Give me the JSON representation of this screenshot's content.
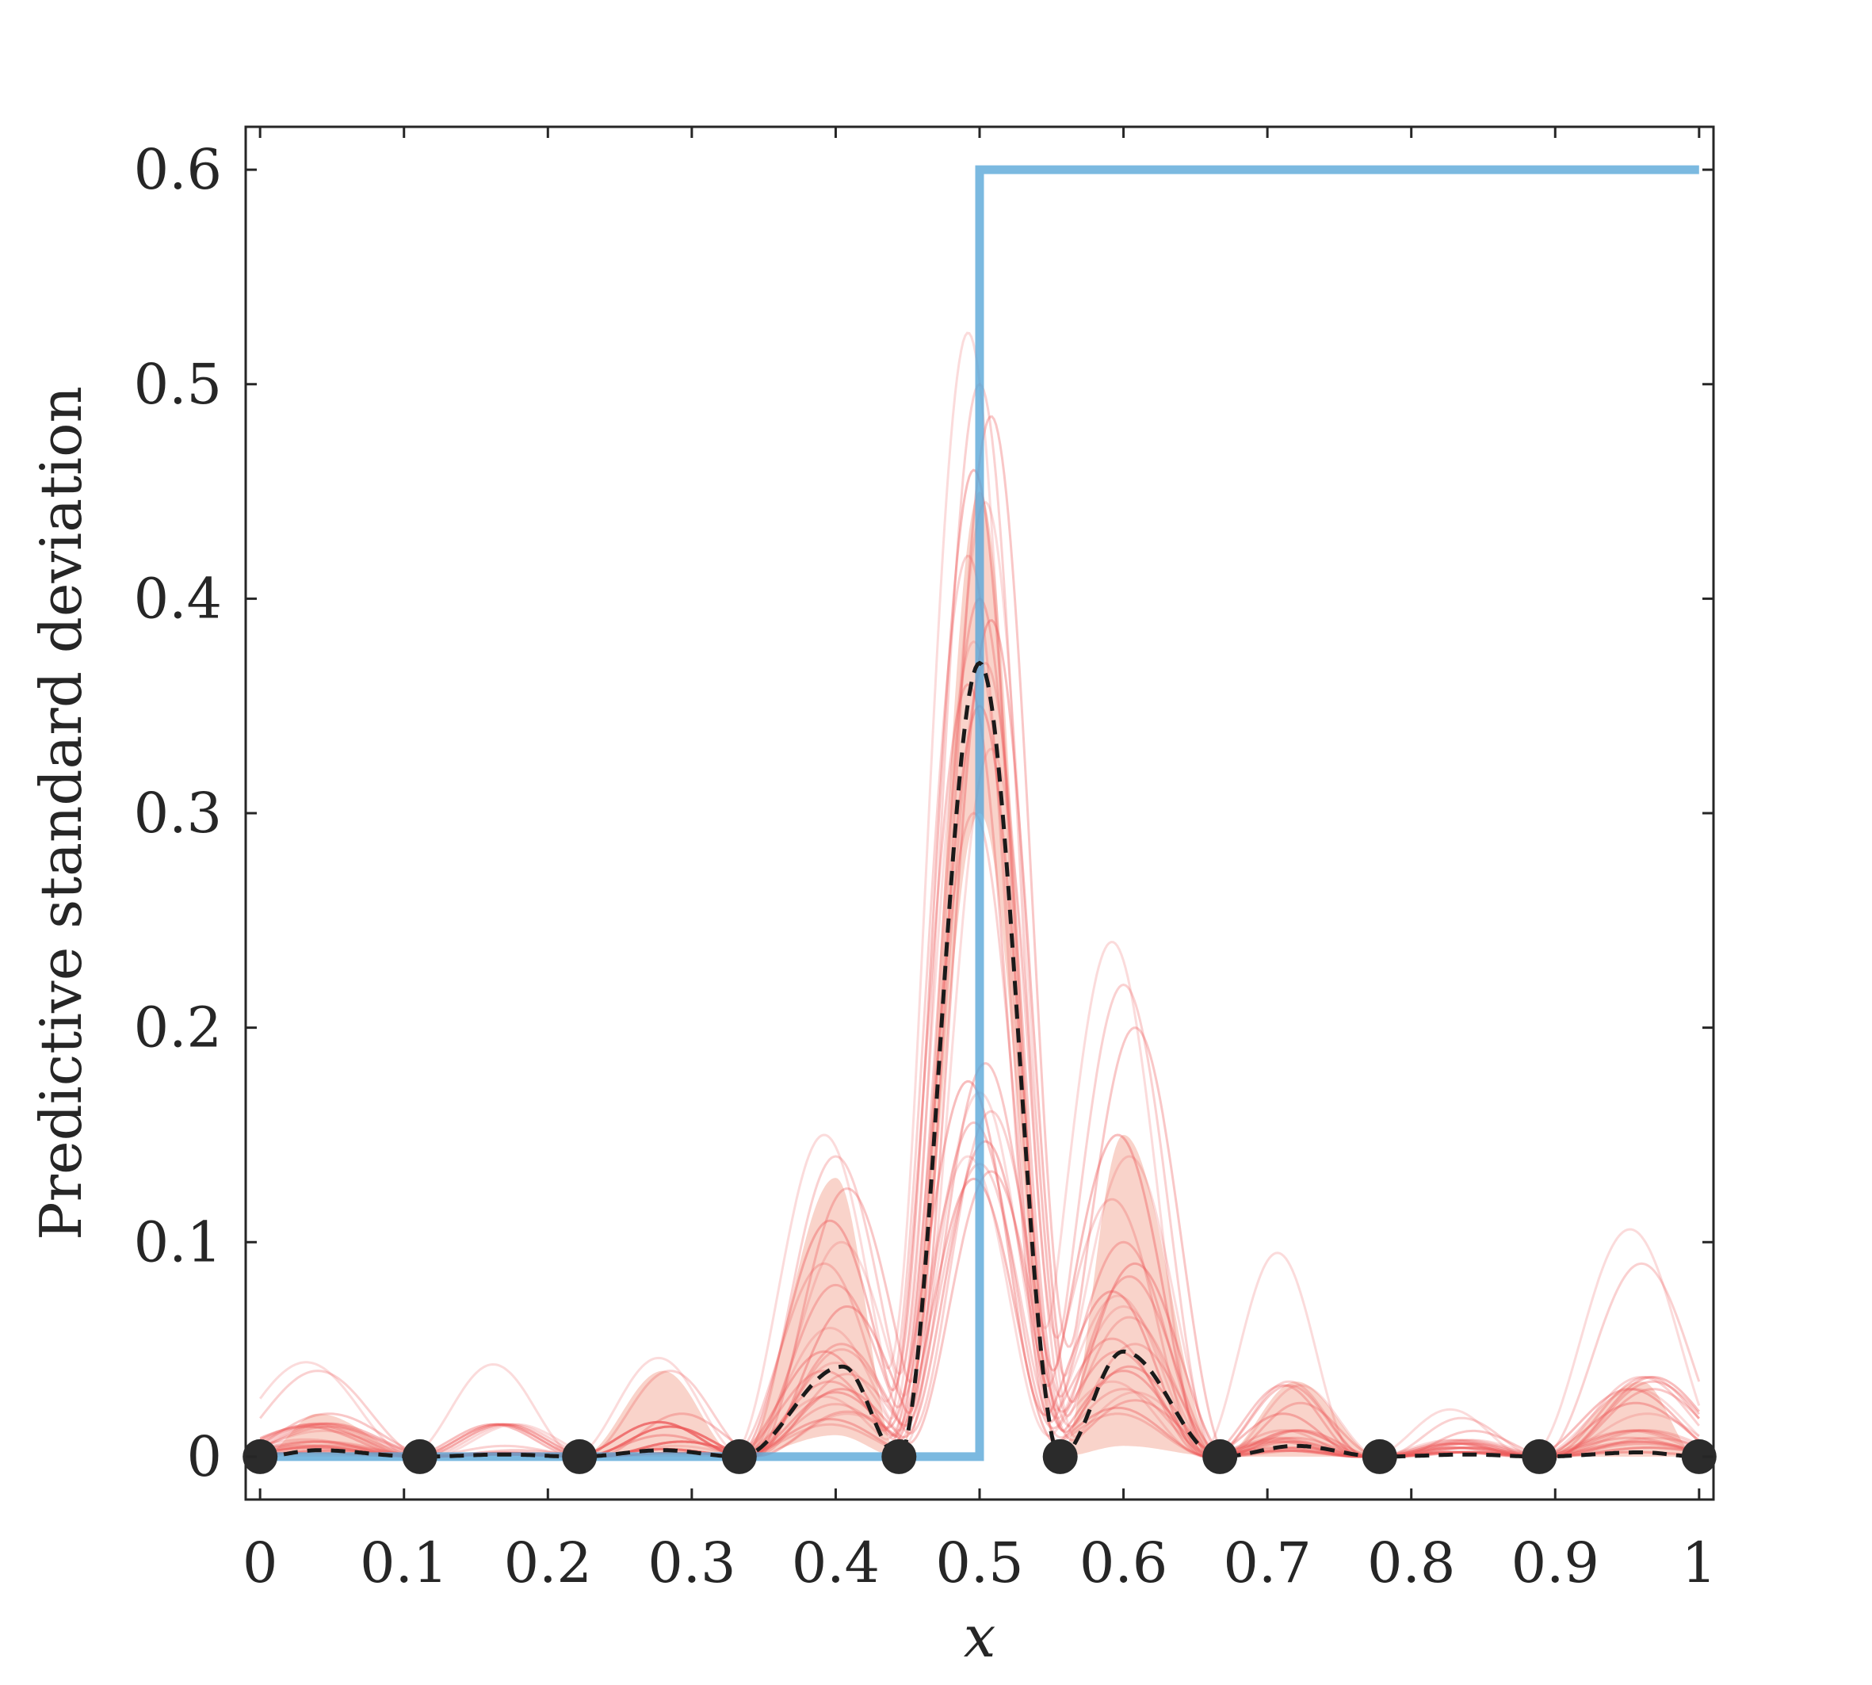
{
  "chart_data": {
    "type": "line",
    "title": "",
    "xlabel": "x",
    "ylabel": "Predictive standard deviation",
    "xlim": [
      -0.01,
      1.01
    ],
    "ylim": [
      -0.02,
      0.62
    ],
    "xticks": [
      0,
      0.1,
      0.2,
      0.3,
      0.4,
      0.5,
      0.6,
      0.7,
      0.8,
      0.9,
      1
    ],
    "xtick_labels": [
      "0",
      "0.1",
      "0.2",
      "0.3",
      "0.4",
      "0.5",
      "0.6",
      "0.7",
      "0.8",
      "0.9",
      "1"
    ],
    "yticks": [
      0,
      0.1,
      0.2,
      0.3,
      0.4,
      0.5,
      0.6
    ],
    "ytick_labels": [
      "0",
      "0.1",
      "0.2",
      "0.3",
      "0.4",
      "0.5",
      "0.6"
    ],
    "grid": false,
    "legend": "none",
    "colors": {
      "step": "#5aa8d8",
      "band": "#f7c4b8",
      "samples": "#ee5a5a",
      "mean": "#1a1a1a",
      "points": "#2b2b2b",
      "axes": "#262626"
    },
    "series": [
      {
        "type": "step",
        "x": [
          0,
          0.5,
          0.5,
          1
        ],
        "y": [
          0,
          0,
          0.6,
          0.6
        ]
      },
      {
        "type": "band",
        "x": [
          0,
          0.04,
          0.111,
          0.222,
          0.28,
          0.333,
          0.4,
          0.444,
          0.5,
          0.556,
          0.6,
          0.667,
          0.72,
          0.778,
          0.889,
          0.96,
          1
        ],
        "lower": [
          0,
          0,
          0,
          0,
          0,
          0,
          0.01,
          0,
          0.3,
          0,
          0.005,
          0,
          0,
          0,
          0,
          0,
          0
        ],
        "upper": [
          0,
          0.02,
          0,
          0,
          0.04,
          0,
          0.13,
          0,
          0.45,
          0,
          0.15,
          0,
          0.035,
          0,
          0,
          0.035,
          0
        ]
      },
      {
        "type": "mean",
        "x": [
          0,
          0.04,
          0.111,
          0.17,
          0.222,
          0.28,
          0.333,
          0.405,
          0.444,
          0.5,
          0.556,
          0.6,
          0.667,
          0.72,
          0.778,
          0.84,
          0.889,
          0.96,
          1
        ],
        "y": [
          0,
          0.003,
          0,
          0.001,
          0,
          0.003,
          0,
          0.042,
          0,
          0.37,
          0,
          0.049,
          0,
          0.005,
          0,
          0.001,
          0,
          0.002,
          0
        ]
      },
      {
        "type": "samples",
        "count": 24,
        "peaks": [
          {
            "name": "left",
            "x": 0.04,
            "heights": [
              0.044,
              0.04,
              0.02,
              0.015,
              0.012,
              0.008,
              0.005
            ]
          },
          {
            "name": "x017",
            "x": 0.17,
            "heights": [
              0.043,
              0.005,
              0.003
            ]
          },
          {
            "name": "x028",
            "x": 0.285,
            "heights": [
              0.046,
              0.04,
              0.02,
              0.01,
              0.005
            ]
          },
          {
            "name": "x040",
            "x": 0.4,
            "heights": [
              0.15,
              0.14,
              0.125,
              0.11,
              0.1,
              0.09,
              0.08,
              0.07,
              0.06,
              0.05,
              0.04,
              0.03,
              0.02,
              0.015
            ]
          },
          {
            "name": "x050",
            "x": 0.5,
            "heights": [
              0.524,
              0.5,
              0.485,
              0.46,
              0.445,
              0.42,
              0.4,
              0.39,
              0.38,
              0.37,
              0.36,
              0.35,
              0.33,
              0.3
            ]
          },
          {
            "name": "x060",
            "x": 0.6,
            "heights": [
              0.24,
              0.22,
              0.2,
              0.15,
              0.14,
              0.12,
              0.1,
              0.09,
              0.075,
              0.065,
              0.055,
              0.04,
              0.03,
              0.02
            ]
          },
          {
            "name": "x072",
            "x": 0.715,
            "heights": [
              0.095,
              0.035,
              0.025,
              0.02,
              0.012,
              0.008
            ]
          },
          {
            "name": "x084",
            "x": 0.835,
            "heights": [
              0.022,
              0.018,
              0.012,
              0.006
            ]
          },
          {
            "name": "x096",
            "x": 0.96,
            "heights": [
              0.106,
              0.09,
              0.035,
              0.025,
              0.02,
              0.012,
              0.006
            ]
          }
        ]
      },
      {
        "type": "observations",
        "x": [
          0,
          0.111,
          0.222,
          0.333,
          0.444,
          0.556,
          0.667,
          0.778,
          0.889,
          1
        ],
        "y": [
          0,
          0,
          0,
          0,
          0,
          0,
          0,
          0,
          0,
          0
        ]
      }
    ]
  }
}
